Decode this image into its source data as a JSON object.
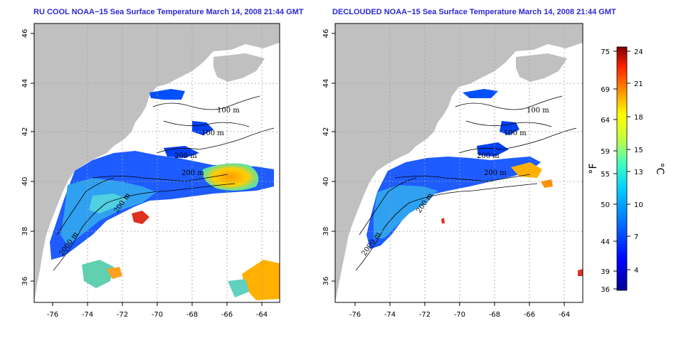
{
  "titles": {
    "left": "RU COOL NOAA−15 Sea Surface Temperature March 14, 2008 21:44 GMT",
    "right": "DECLOUDED NOAA−15 Sea Surface Temperature March 14, 2008 21:44 GMT"
  },
  "axes": {
    "x_ticks": [
      "-76",
      "-74",
      "-72",
      "-70",
      "-68",
      "-66",
      "-64"
    ],
    "y_ticks": [
      "36",
      "38",
      "40",
      "42",
      "44",
      "46"
    ]
  },
  "contours": {
    "labels_left": [
      "100 m",
      "100 m",
      "200 m",
      "200 m",
      "200 m",
      "2000 m"
    ],
    "labels_right": [
      "100 m",
      "100 m",
      "200 m",
      "200 m",
      "200 m",
      "2000 m"
    ]
  },
  "colorbar": {
    "fahrenheit_ticks": [
      "75",
      "69",
      "64",
      "59",
      "55",
      "50",
      "44",
      "39",
      "36"
    ],
    "celsius_ticks": [
      "24",
      "21",
      "18",
      "15",
      "13",
      "10",
      "7",
      "4"
    ],
    "fahrenheit_unit": "°F",
    "celsius_unit": "°C"
  },
  "colors": {
    "land": "#c0c0c0",
    "title": "#2a2ad0",
    "grid": "#a0a0a0"
  }
}
